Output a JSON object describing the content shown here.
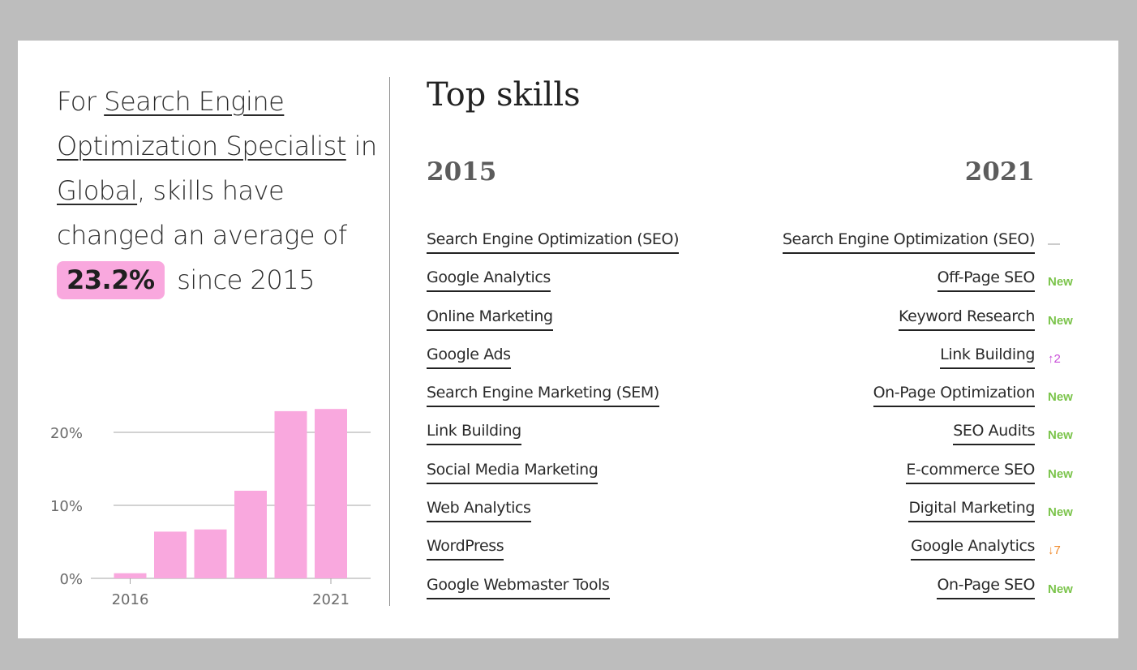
{
  "headline": {
    "prefix": "For ",
    "job": "Search Engine Optimization Specialist",
    "in": " in ",
    "region": "Global",
    "mid": ", skills have changed an average of ",
    "percent": "23.2%",
    "suffix": " since 2015"
  },
  "skills": {
    "title": "Top skills",
    "year_start": "2015",
    "year_end": "2021",
    "skills_2015": [
      "Search Engine Optimization (SEO)",
      "Google Analytics",
      "Online Marketing",
      "Google Ads",
      "Search Engine Marketing (SEM)",
      "Link Building",
      "Social Media Marketing",
      "Web Analytics",
      "WordPress",
      "Google Webmaster Tools"
    ],
    "skills_2021": [
      {
        "name": "Search Engine Optimization (SEO)",
        "change": "—",
        "kind": "same"
      },
      {
        "name": "Off-Page SEO",
        "change": "New",
        "kind": "new"
      },
      {
        "name": "Keyword Research",
        "change": "New",
        "kind": "new"
      },
      {
        "name": "Link Building",
        "change": "↑2",
        "kind": "up"
      },
      {
        "name": "On-Page Optimization",
        "change": "New",
        "kind": "new"
      },
      {
        "name": "SEO Audits",
        "change": "New",
        "kind": "new"
      },
      {
        "name": "E-commerce SEO",
        "change": "New",
        "kind": "new"
      },
      {
        "name": "Digital Marketing",
        "change": "New",
        "kind": "new"
      },
      {
        "name": "Google Analytics",
        "change": "↓7",
        "kind": "down"
      },
      {
        "name": "On-Page SEO",
        "change": "New",
        "kind": "new"
      }
    ]
  },
  "colors": {
    "bar": "#f9a8de",
    "new": "#7bc44b",
    "up": "#c94fd8",
    "down": "#f08a2b",
    "grid": "#a6a6a6",
    "axis_text": "#6b6b6b"
  },
  "chart_data": {
    "type": "bar",
    "categories": [
      "2016",
      "2017",
      "2018",
      "2019",
      "2020",
      "2021"
    ],
    "values": [
      0.7,
      6.4,
      6.7,
      12.0,
      22.9,
      23.2
    ],
    "y_ticks": [
      "0%",
      "10%",
      "20%"
    ],
    "y_tick_values": [
      0,
      10,
      20
    ],
    "x_tick_labels": [
      "2016",
      "2021"
    ],
    "x_tick_categories": [
      "2016",
      "2021"
    ],
    "ylim": [
      0,
      25
    ],
    "grid": true,
    "title": "",
    "xlabel": "",
    "ylabel": ""
  }
}
